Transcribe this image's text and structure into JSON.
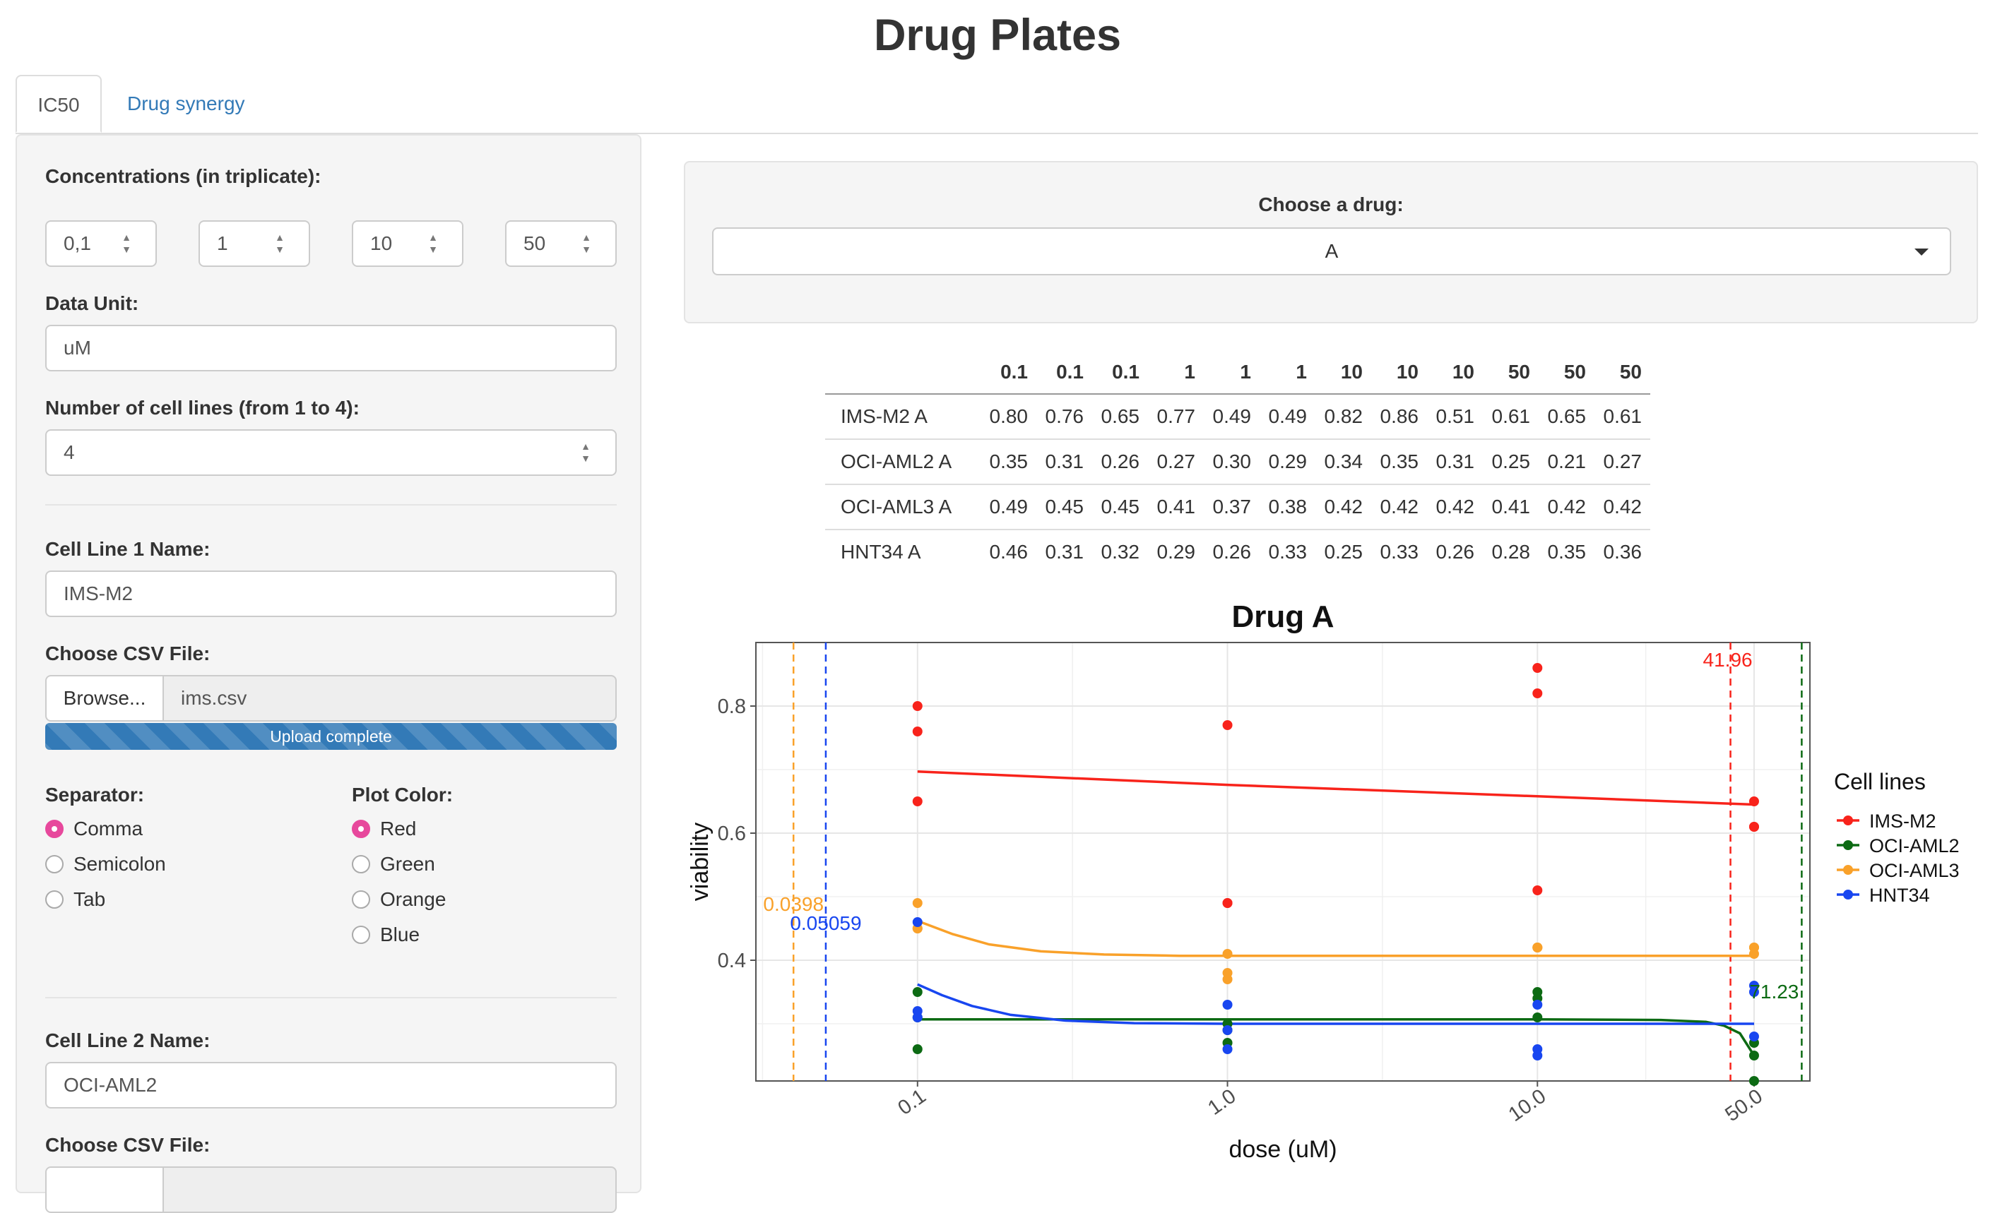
{
  "app_title": "Drug Plates",
  "tabs": [
    {
      "label": "IC50",
      "active": true
    },
    {
      "label": "Drug synergy",
      "active": false
    }
  ],
  "sidebar": {
    "concentrations_label": "Concentrations (in triplicate):",
    "concentrations": [
      "0,1",
      "1",
      "10",
      "50"
    ],
    "data_unit_label": "Data Unit:",
    "data_unit": "uM",
    "num_cell_lines_label": "Number of cell lines (from 1 to 4):",
    "num_cell_lines": "4",
    "cell_line_1": {
      "name_label": "Cell Line 1 Name:",
      "name": "IMS-M2",
      "csv_label": "Choose CSV File:",
      "browse_label": "Browse...",
      "file_name": "ims.csv",
      "upload_status": "Upload complete",
      "upload_progress": 1.0,
      "separator_label": "Separator:",
      "separator_options": [
        "Comma",
        "Semicolon",
        "Tab"
      ],
      "separator_selected": "Comma",
      "plot_color_label": "Plot Color:",
      "plot_color_options": [
        "Red",
        "Green",
        "Orange",
        "Blue"
      ],
      "plot_color_selected": "Red"
    },
    "cell_line_2": {
      "name_label": "Cell Line 2 Name:",
      "name": "OCI-AML2",
      "csv_label": "Choose CSV File:"
    }
  },
  "drug_select": {
    "label": "Choose a drug:",
    "value": "A"
  },
  "table": {
    "columns": [
      "",
      "0.1",
      "0.1",
      "0.1",
      "1",
      "1",
      "1",
      "10",
      "10",
      "10",
      "50",
      "50",
      "50"
    ],
    "rows": [
      {
        "name": "IMS-M2 A",
        "values": [
          "0.80",
          "0.76",
          "0.65",
          "0.77",
          "0.49",
          "0.49",
          "0.82",
          "0.86",
          "0.51",
          "0.61",
          "0.65",
          "0.61"
        ]
      },
      {
        "name": "OCI-AML2 A",
        "values": [
          "0.35",
          "0.31",
          "0.26",
          "0.27",
          "0.30",
          "0.29",
          "0.34",
          "0.35",
          "0.31",
          "0.25",
          "0.21",
          "0.27"
        ]
      },
      {
        "name": "OCI-AML3 A",
        "values": [
          "0.49",
          "0.45",
          "0.45",
          "0.41",
          "0.37",
          "0.38",
          "0.42",
          "0.42",
          "0.42",
          "0.41",
          "0.42",
          "0.42"
        ]
      },
      {
        "name": "HNT34 A",
        "values": [
          "0.46",
          "0.31",
          "0.32",
          "0.29",
          "0.26",
          "0.33",
          "0.25",
          "0.33",
          "0.26",
          "0.28",
          "0.35",
          "0.36"
        ]
      }
    ]
  },
  "colors": {
    "accent_link": "#337ab7",
    "radio_checked": "#e7489c",
    "series_red": "#f8231b",
    "series_green": "#0c6a13",
    "series_orange": "#f9a12a",
    "series_blue": "#1846f0"
  },
  "chart_data": {
    "type": "scatter",
    "title": "Drug A",
    "xlabel": "dose (uM)",
    "ylabel": "viability",
    "x_scale": "log10",
    "xlim": [
      0.0301,
      75.7
    ],
    "ylim": [
      0.21,
      0.9
    ],
    "x_ticks": [
      0.1,
      1.0,
      10.0,
      50.0
    ],
    "x_tick_labels": [
      "0.1",
      "1.0",
      "10.0",
      "50.0"
    ],
    "y_ticks": [
      0.4,
      0.6,
      0.8
    ],
    "y_tick_labels": [
      "0.4",
      "0.6",
      "0.8"
    ],
    "y_minor_ticks": [
      0.3,
      0.5,
      0.7
    ],
    "grid": true,
    "legend": {
      "title": "Cell lines",
      "position": "right"
    },
    "series": [
      {
        "name": "IMS-M2",
        "color": "#f8231b",
        "points": [
          [
            0.1,
            0.8
          ],
          [
            0.1,
            0.76
          ],
          [
            0.1,
            0.65
          ],
          [
            1,
            0.77
          ],
          [
            1,
            0.49
          ],
          [
            1,
            0.49
          ],
          [
            10,
            0.82
          ],
          [
            10,
            0.86
          ],
          [
            10,
            0.51
          ],
          [
            50,
            0.61
          ],
          [
            50,
            0.65
          ],
          [
            50,
            0.61
          ]
        ],
        "fit": [
          [
            0.1,
            0.697
          ],
          [
            1,
            0.676
          ],
          [
            10,
            0.658
          ],
          [
            50,
            0.645
          ]
        ],
        "ic50": 41.96,
        "ic50_label": "41.96"
      },
      {
        "name": "OCI-AML2",
        "color": "#0c6a13",
        "points": [
          [
            0.1,
            0.35
          ],
          [
            0.1,
            0.31
          ],
          [
            0.1,
            0.26
          ],
          [
            1,
            0.27
          ],
          [
            1,
            0.3
          ],
          [
            1,
            0.29
          ],
          [
            10,
            0.34
          ],
          [
            10,
            0.35
          ],
          [
            10,
            0.31
          ],
          [
            50,
            0.25
          ],
          [
            50,
            0.21
          ],
          [
            50,
            0.27
          ]
        ],
        "fit": [
          [
            0.1,
            0.307
          ],
          [
            1,
            0.307
          ],
          [
            10,
            0.307
          ],
          [
            25,
            0.306
          ],
          [
            35,
            0.303
          ],
          [
            40,
            0.297
          ],
          [
            45,
            0.285
          ],
          [
            50,
            0.25
          ]
        ],
        "ic50": 71.23,
        "ic50_label": "71.23"
      },
      {
        "name": "OCI-AML3",
        "color": "#f9a12a",
        "points": [
          [
            0.1,
            0.49
          ],
          [
            0.1,
            0.45
          ],
          [
            0.1,
            0.45
          ],
          [
            1,
            0.41
          ],
          [
            1,
            0.37
          ],
          [
            1,
            0.38
          ],
          [
            10,
            0.42
          ],
          [
            10,
            0.42
          ],
          [
            10,
            0.42
          ],
          [
            50,
            0.41
          ],
          [
            50,
            0.42
          ],
          [
            50,
            0.42
          ]
        ],
        "fit": [
          [
            0.1,
            0.462
          ],
          [
            0.13,
            0.441
          ],
          [
            0.17,
            0.425
          ],
          [
            0.25,
            0.414
          ],
          [
            0.4,
            0.409
          ],
          [
            0.7,
            0.407
          ],
          [
            1,
            0.407
          ],
          [
            50,
            0.407
          ]
        ],
        "ic50": 0.0398,
        "ic50_label": "0.0398"
      },
      {
        "name": "HNT34",
        "color": "#1846f0",
        "points": [
          [
            0.1,
            0.46
          ],
          [
            0.1,
            0.31
          ],
          [
            0.1,
            0.32
          ],
          [
            1,
            0.29
          ],
          [
            1,
            0.26
          ],
          [
            1,
            0.33
          ],
          [
            10,
            0.25
          ],
          [
            10,
            0.33
          ],
          [
            10,
            0.26
          ],
          [
            50,
            0.28
          ],
          [
            50,
            0.35
          ],
          [
            50,
            0.36
          ]
        ],
        "fit": [
          [
            0.1,
            0.362
          ],
          [
            0.12,
            0.345
          ],
          [
            0.15,
            0.328
          ],
          [
            0.2,
            0.314
          ],
          [
            0.3,
            0.305
          ],
          [
            0.5,
            0.301
          ],
          [
            1,
            0.3
          ],
          [
            50,
            0.3
          ]
        ],
        "ic50": 0.05059,
        "ic50_label": "0.05059"
      }
    ]
  }
}
